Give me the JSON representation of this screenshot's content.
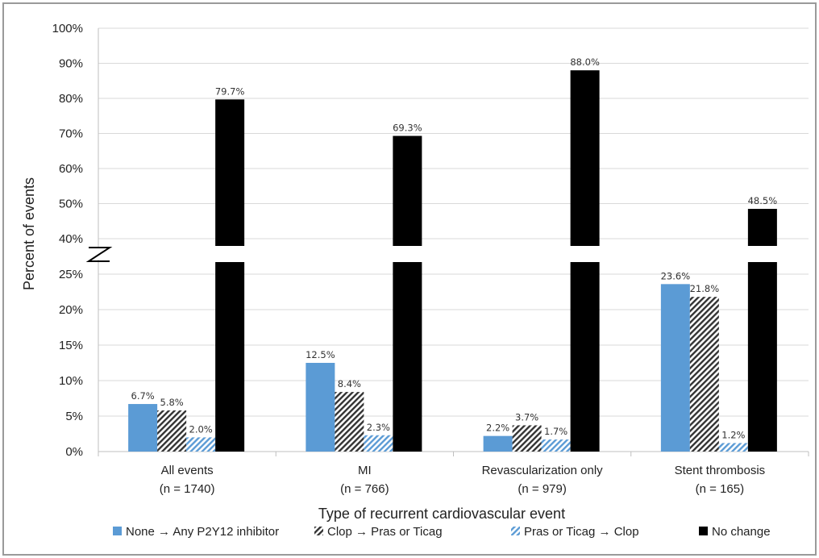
{
  "chart_data": {
    "type": "bar",
    "title": "",
    "xlabel": "Type of recurrent cardiovascular event",
    "ylabel": "Percent of events",
    "categories": [
      {
        "name": "All events",
        "n": "(n = 1740)"
      },
      {
        "name": "MI",
        "n": "(n = 766)"
      },
      {
        "name": "Revascularization only",
        "n": "(n = 979)"
      },
      {
        "name": "Stent thrombosis",
        "n": "(n = 165)"
      }
    ],
    "series": [
      {
        "name": "None → Any P2Y12 inhibitor",
        "color": "#5b9bd5",
        "pattern": "solid",
        "values": [
          6.7,
          12.5,
          2.2,
          23.6
        ],
        "labels": [
          "6.7%",
          "12.5%",
          "2.2%",
          "23.6%"
        ]
      },
      {
        "name": "Clop → Pras or Ticag",
        "color": "#404040",
        "pattern": "dense-diagonal-hatch",
        "values": [
          5.8,
          8.4,
          3.7,
          21.8
        ],
        "labels": [
          "5.8%",
          "8.4%",
          "3.7%",
          "21.8%"
        ]
      },
      {
        "name": "Pras or Ticag → Clop",
        "color": "#5b9bd5",
        "pattern": "light-diagonal-hatch",
        "values": [
          2.0,
          2.3,
          1.7,
          1.2
        ],
        "labels": [
          "2.0%",
          "2.3%",
          "1.7%",
          "1.2%"
        ]
      },
      {
        "name": "No change",
        "color": "#000000",
        "pattern": "solid",
        "values": [
          79.7,
          69.3,
          88.0,
          48.5
        ],
        "labels": [
          "79.7%",
          "69.3%",
          "88.0%",
          "48.5%"
        ]
      }
    ],
    "y_axis": {
      "broken": true,
      "lower_range": [
        0,
        25
      ],
      "upper_range": [
        40,
        100
      ],
      "lower_ticks": [
        "0%",
        "5%",
        "10%",
        "15%",
        "20%",
        "25%"
      ],
      "upper_ticks": [
        "40%",
        "50%",
        "60%",
        "70%",
        "80%",
        "90%",
        "100%"
      ]
    },
    "grid": true,
    "legend_position": "bottom"
  }
}
